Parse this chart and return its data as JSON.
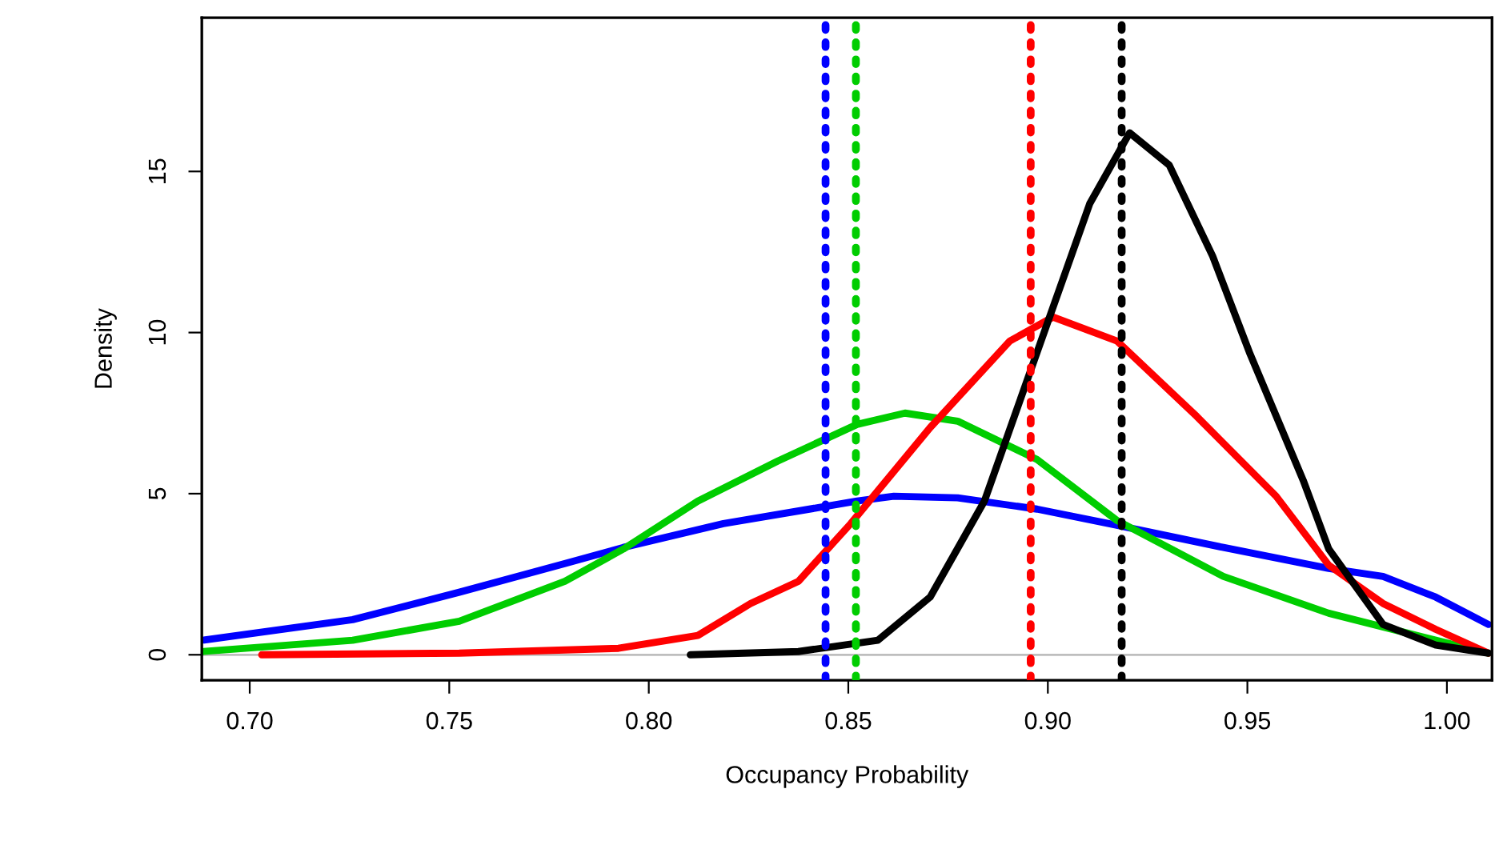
{
  "chart_data": {
    "type": "line",
    "xlabel": "Occupancy Probability",
    "ylabel": "Density",
    "xlim": [
      0.688,
      1.0113
    ],
    "ylim": [
      -0.79,
      19.77
    ],
    "xticks": [
      {
        "value": 0.7,
        "label": "0.70"
      },
      0.75,
      {
        "value": 0.8,
        "label": "0.80"
      },
      0.85,
      {
        "value": 0.9,
        "label": "0.90"
      },
      0.95,
      {
        "value": 1.0,
        "label": "1.00"
      }
    ],
    "yticks": [
      0,
      5,
      10,
      15
    ],
    "grid": false,
    "legend": false,
    "marker": "none",
    "line_style": "solid",
    "series": [
      {
        "color": "#0000ff",
        "x": [
          0.688,
          0.7258,
          0.7525,
          0.779,
          0.7936,
          0.8187,
          0.8522,
          0.8614,
          0.8774,
          0.8973,
          0.9173,
          0.944,
          0.9704,
          0.984,
          0.9972,
          1.0104
        ],
        "values": [
          0.45,
          1.09,
          1.94,
          2.83,
          3.33,
          4.07,
          4.77,
          4.92,
          4.87,
          4.52,
          4.02,
          3.33,
          2.68,
          2.43,
          1.79,
          0.94
        ]
      },
      {
        "color": "#00cd00",
        "x": [
          0.688,
          0.7258,
          0.7525,
          0.779,
          0.7936,
          0.8123,
          0.8323,
          0.8522,
          0.8642,
          0.8774,
          0.8973,
          0.9173,
          0.944,
          0.9704,
          0.9972,
          1.0104
        ],
        "values": [
          0.1,
          0.45,
          1.04,
          2.28,
          3.28,
          4.77,
          6.01,
          7.15,
          7.5,
          7.25,
          6.06,
          4.17,
          2.43,
          1.29,
          0.45,
          0.05
        ]
      },
      {
        "color": "#ff0000",
        "x": [
          0.703,
          0.7525,
          0.7924,
          0.8123,
          0.8255,
          0.8375,
          0.8506,
          0.8705,
          0.8905,
          0.9013,
          0.9173,
          0.9373,
          0.9572,
          0.9704,
          0.984,
          0.9972,
          1.0104
        ],
        "values": [
          0.0,
          0.05,
          0.2,
          0.6,
          1.59,
          2.28,
          4.07,
          7.05,
          9.74,
          10.48,
          9.74,
          7.4,
          4.92,
          2.78,
          1.59,
          0.79,
          0.05
        ]
      },
      {
        "color": "#000000",
        "x": [
          0.8104,
          0.8375,
          0.8574,
          0.8705,
          0.8841,
          0.8973,
          0.9105,
          0.9205,
          0.9304,
          0.9413,
          0.9505,
          0.964,
          0.9704,
          0.984,
          0.9972,
          1.0104
        ],
        "values": [
          0.0,
          0.1,
          0.45,
          1.79,
          4.77,
          9.39,
          14.0,
          16.2,
          15.2,
          12.37,
          9.39,
          5.41,
          3.28,
          0.94,
          0.3,
          0.05
        ]
      }
    ],
    "ref_lines": [
      {
        "axis": "y",
        "value": 0,
        "color": "#bebebe",
        "line_style": "solid"
      },
      {
        "axis": "x",
        "value": 0.8443,
        "color": "#0000ff",
        "line_style": "dotted"
      },
      {
        "axis": "x",
        "value": 0.8519,
        "color": "#00cd00",
        "line_style": "dotted"
      },
      {
        "axis": "x",
        "value": 0.8957,
        "color": "#ff0000",
        "line_style": "dotted"
      },
      {
        "axis": "x",
        "value": 0.9185,
        "color": "#000000",
        "line_style": "dotted"
      }
    ]
  }
}
